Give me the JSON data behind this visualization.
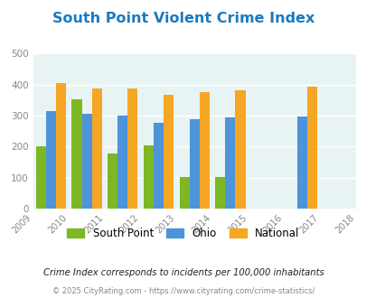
{
  "title": "South Point Violent Crime Index",
  "title_color": "#1a7abf",
  "south_point_vals": [
    200,
    352,
    178,
    204,
    103,
    102
  ],
  "ohio_vals": [
    315,
    307,
    300,
    278,
    288,
    294
  ],
  "national_vals": [
    405,
    387,
    387,
    366,
    377,
    383
  ],
  "south_point_vals_2017": [],
  "ohio_vals_2017": [
    298
  ],
  "national_vals_2017": [
    394
  ],
  "bar_centers": [
    2009.5,
    2010.5,
    2011.5,
    2012.5,
    2013.5,
    2014.5
  ],
  "bar_center_2017": [
    2016.5
  ],
  "color_sp": "#7db824",
  "color_ohio": "#4d94db",
  "color_national": "#f5a623",
  "ylim": [
    0,
    500
  ],
  "yticks": [
    0,
    100,
    200,
    300,
    400,
    500
  ],
  "xlim": [
    2009,
    2018
  ],
  "xticks": [
    2009,
    2010,
    2011,
    2012,
    2013,
    2014,
    2015,
    2016,
    2017,
    2018
  ],
  "bg_color": "#e8f4f4",
  "grid_color": "#ffffff",
  "footnote1": "Crime Index corresponds to incidents per 100,000 inhabitants",
  "footnote2": "© 2025 CityRating.com - https://www.cityrating.com/crime-statistics/",
  "bar_width": 0.28
}
